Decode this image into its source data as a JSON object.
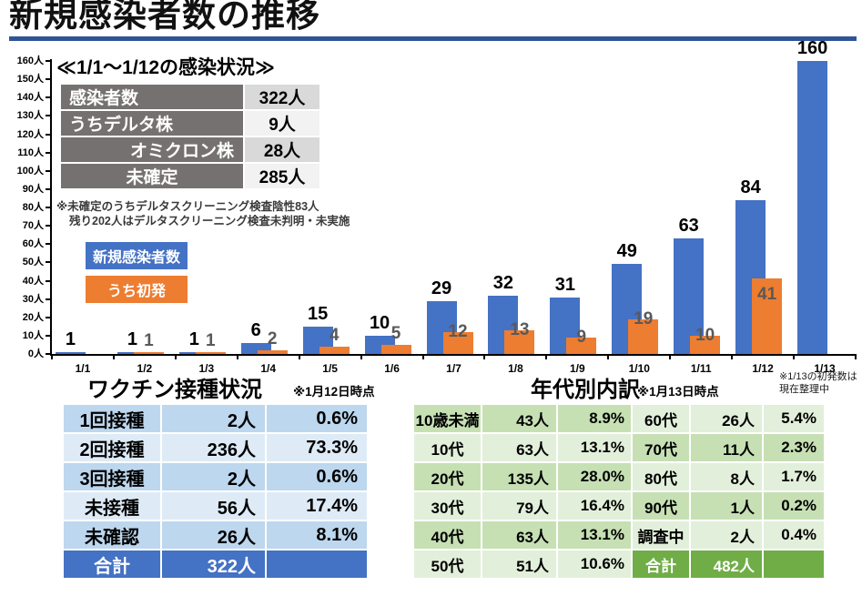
{
  "title": "新規感染者数の推移",
  "info_box": {
    "heading": "≪1/1～1/12の感染状況≫",
    "rows": [
      {
        "label": "感染者数",
        "value": "322人",
        "align": "left"
      },
      {
        "label": "うちデルタ株",
        "value": "9人",
        "align": "left"
      },
      {
        "label": "オミクロン株",
        "value": "28人",
        "align": "right"
      },
      {
        "label": "未確定",
        "value": "285人",
        "align": "center"
      }
    ],
    "footnote_line1": "※未確定のうちデルタスクリーニング検査陰性83人",
    "footnote_line2": "残り202人はデルタスクリーニング検査未判明・未実施"
  },
  "legend": [
    {
      "label": "新規感染者数",
      "color": "#4472C4"
    },
    {
      "label": "うち初発",
      "color": "#ED7D31"
    }
  ],
  "chart_note": {
    "line1": "※1/13の初発数は",
    "line2": "現在整理中"
  },
  "chart_data": {
    "type": "bar",
    "categories": [
      "1/1",
      "1/2",
      "1/3",
      "1/4",
      "1/5",
      "1/6",
      "1/7",
      "1/8",
      "1/9",
      "1/10",
      "1/11",
      "1/12",
      "1/13"
    ],
    "series": [
      {
        "name": "新規感染者数",
        "color": "#4472C4",
        "values": [
          1,
          1,
          1,
          6,
          15,
          10,
          29,
          32,
          31,
          49,
          63,
          84,
          160
        ]
      },
      {
        "name": "うち初発",
        "color": "#ED7D31",
        "values": [
          null,
          1,
          1,
          2,
          4,
          5,
          12,
          13,
          9,
          19,
          10,
          41,
          null
        ]
      }
    ],
    "title": "新規感染者数の推移",
    "xlabel": "",
    "ylabel": "",
    "ylim": [
      0,
      160
    ],
    "ytick_step": 10,
    "ytick_suffix": "人",
    "grid": false,
    "legend_position": "upper-left-overlay"
  },
  "vaccine": {
    "heading": "ワクチン接種状況",
    "asof": "※1月12日時点",
    "rows": [
      {
        "label": "1回接種",
        "count": "2人",
        "percent": "0.6%"
      },
      {
        "label": "2回接種",
        "count": "236人",
        "percent": "73.3%"
      },
      {
        "label": "3回接種",
        "count": "2人",
        "percent": "0.6%"
      },
      {
        "label": "未接種",
        "count": "56人",
        "percent": "17.4%"
      },
      {
        "label": "未確認",
        "count": "26人",
        "percent": "8.1%"
      }
    ],
    "total": {
      "label": "合計",
      "count": "322人",
      "percent": ""
    }
  },
  "age": {
    "heading": "年代別内訳",
    "asof": "※1月13日時点",
    "left_rows": [
      {
        "label": "10歳未満",
        "count": "43人",
        "percent": "8.9%"
      },
      {
        "label": "10代",
        "count": "63人",
        "percent": "13.1%"
      },
      {
        "label": "20代",
        "count": "135人",
        "percent": "28.0%"
      },
      {
        "label": "30代",
        "count": "79人",
        "percent": "16.4%"
      },
      {
        "label": "40代",
        "count": "63人",
        "percent": "13.1%"
      },
      {
        "label": "50代",
        "count": "51人",
        "percent": "10.6%"
      }
    ],
    "right_rows": [
      {
        "label": "60代",
        "count": "26人",
        "percent": "5.4%"
      },
      {
        "label": "70代",
        "count": "11人",
        "percent": "2.3%"
      },
      {
        "label": "80代",
        "count": "8人",
        "percent": "1.7%"
      },
      {
        "label": "90代",
        "count": "1人",
        "percent": "0.2%"
      },
      {
        "label": "調査中",
        "count": "2人",
        "percent": "0.4%"
      }
    ],
    "total": {
      "label": "合計",
      "count": "482人",
      "percent": ""
    }
  },
  "colors": {
    "bar_blue": "#4472C4",
    "bar_orange": "#ED7D31",
    "orange_label": "#595959",
    "title_underline": "#2F5597",
    "info_label_bg": "#767171",
    "info_value_bg_odd": "#D9D9D9",
    "info_value_bg_even": "#F2F2F2",
    "vaccine_row_odd": "#BDD7EE",
    "vaccine_row_even": "#DEEBF7",
    "vaccine_total_bg": "#4472C4",
    "age_row_dark": "#C6E0B4",
    "age_row_light": "#E2EFDA",
    "age_total_bg": "#70AD47"
  }
}
